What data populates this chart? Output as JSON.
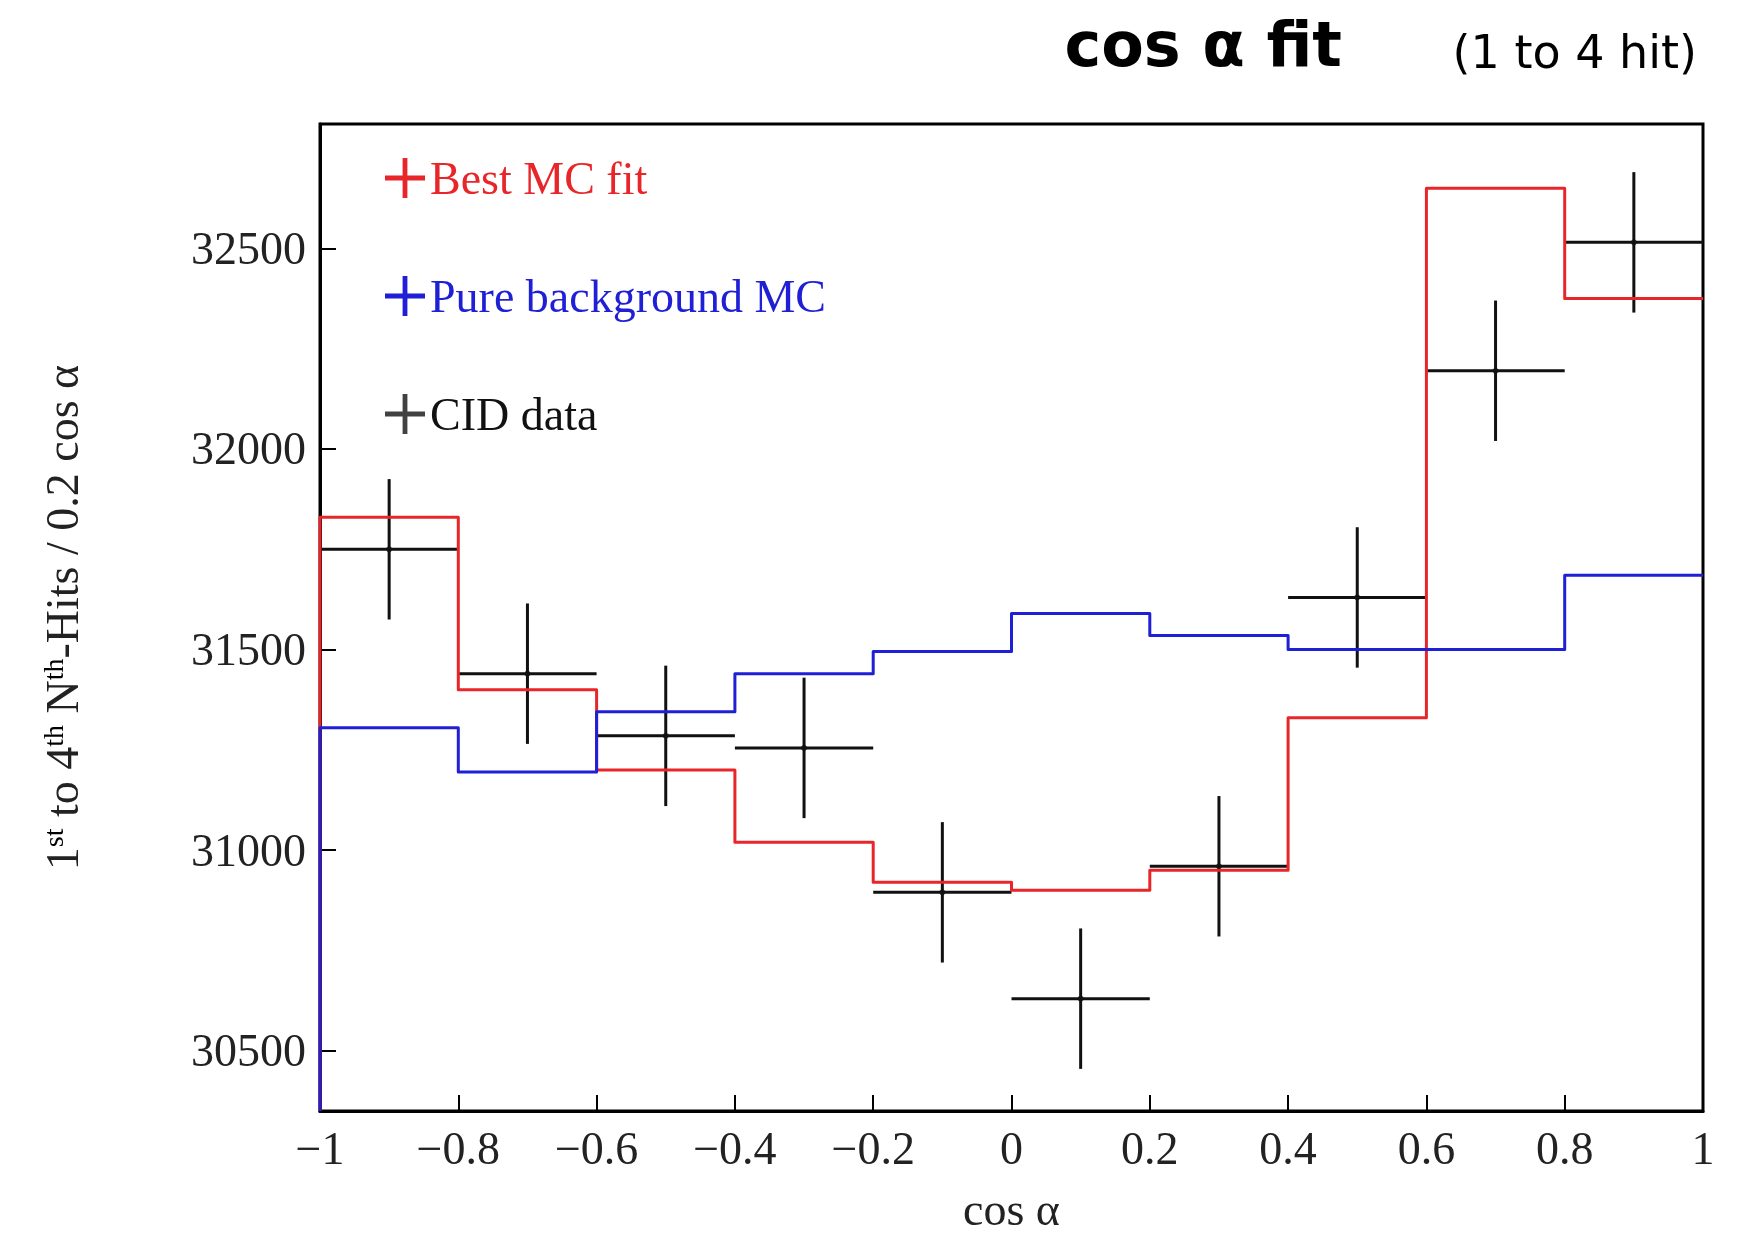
{
  "chart_data": {
    "type": "histogram",
    "title": "cos α fit",
    "subtitle": "(1 to 4 hit)",
    "xlabel": "cos α",
    "ylabel": "1$^{st}$ to 4$^{th}$ N$^{th}$-Hits / 0.2 cos α",
    "bins": [
      -1,
      -0.8,
      -0.6,
      -0.4,
      -0.2,
      0,
      0.2,
      0.4,
      0.6,
      0.8,
      1
    ],
    "series": [
      {
        "name": "Best MC fit",
        "color": "#e8262a",
        "values": [
          31830,
          31400,
          31200,
          31020,
          30920,
          30900,
          30950,
          31330,
          32650,
          32375
        ]
      },
      {
        "name": "Pure background MC",
        "color": "#1f1fd6",
        "values": [
          31305,
          31195,
          31345,
          31440,
          31495,
          31590,
          31535,
          31500,
          31500,
          31685
        ]
      },
      {
        "name": "CID data",
        "type": "scatter",
        "color": "#111111",
        "marker": "none",
        "x": [
          -0.9,
          -0.7,
          -0.5,
          -0.3,
          -0.1,
          0.1,
          0.3,
          0.5,
          0.7,
          0.9
        ],
        "values": [
          31750,
          31440,
          31285,
          31255,
          30895,
          30630,
          30960,
          31630,
          32195,
          32515
        ],
        "errors": [
          175,
          175,
          175,
          175,
          175,
          175,
          175,
          175,
          175,
          175
        ],
        "xerrors": [
          0.1,
          0.1,
          0.1,
          0.1,
          0.1,
          0.1,
          0.1,
          0.1,
          0.1,
          0.1
        ]
      }
    ],
    "xlim": [
      -1,
      1
    ],
    "ylim": [
      30350,
      32810
    ],
    "xticks": [
      {
        "value": -1,
        "label": "−1"
      },
      {
        "value": -0.8,
        "label": "−0.8"
      },
      {
        "value": -0.6,
        "label": "−0.6"
      },
      {
        "value": -0.4,
        "label": "−0.4"
      },
      {
        "value": -0.2,
        "label": "−0.2"
      },
      0,
      0.2,
      0.4,
      0.6,
      0.8,
      1
    ],
    "yticks": [
      30500,
      31000,
      31500,
      32000,
      32500
    ],
    "legend": "top left",
    "grid": false
  }
}
